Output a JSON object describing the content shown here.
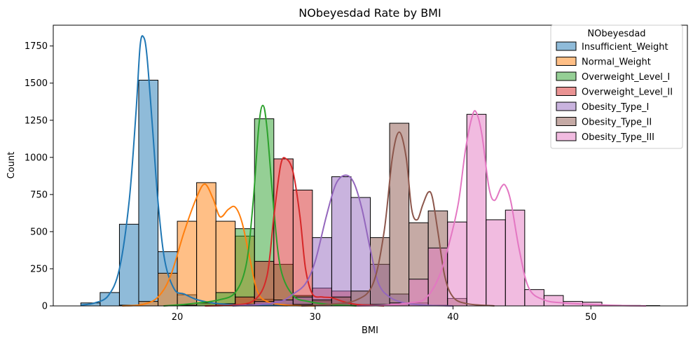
{
  "chart_data": {
    "type": "histogram",
    "title": "NObeyesdad Rate by BMI",
    "xlabel": "BMI",
    "ylabel": "Count",
    "xlim": [
      11,
      57
    ],
    "ylim": [
      0,
      1890
    ],
    "x_ticks": [
      20,
      30,
      40,
      50
    ],
    "y_ticks": [
      0,
      250,
      500,
      750,
      1000,
      1250,
      1500,
      1750
    ],
    "legend": {
      "title": "NObeyesdad",
      "position": "upper right"
    },
    "bin_edges": [
      13.0,
      14.4,
      15.8,
      17.2,
      18.6,
      20.0,
      21.4,
      22.8,
      24.2,
      25.6,
      27.0,
      28.4,
      29.8,
      31.2,
      32.6,
      34.0,
      35.4,
      36.8,
      38.2,
      39.6,
      41.0,
      42.4,
      43.8,
      45.2,
      46.6,
      48.0,
      49.4,
      50.8,
      52.2,
      53.6,
      55.0
    ],
    "series": [
      {
        "name": "Insufficient_Weight",
        "color": "#1f77b4",
        "counts": [
          20,
          90,
          550,
          1520,
          365,
          75,
          20,
          10,
          5,
          3,
          2,
          0,
          0,
          0,
          0,
          0,
          0,
          0,
          0,
          0,
          0,
          0,
          0,
          0,
          0,
          0,
          0,
          0,
          0,
          0
        ],
        "kde": [
          [
            13.0,
            5
          ],
          [
            14.0,
            20
          ],
          [
            15.0,
            70
          ],
          [
            15.8,
            250
          ],
          [
            16.5,
            700
          ],
          [
            17.0,
            1300
          ],
          [
            17.3,
            1750
          ],
          [
            17.55,
            1810
          ],
          [
            17.8,
            1680
          ],
          [
            18.2,
            1200
          ],
          [
            18.6,
            700
          ],
          [
            19.1,
            300
          ],
          [
            19.8,
            110
          ],
          [
            20.5,
            80
          ],
          [
            21.5,
            40
          ],
          [
            23,
            15
          ],
          [
            25,
            5
          ],
          [
            28,
            2
          ]
        ]
      },
      {
        "name": "Normal_Weight",
        "color": "#ff7f0e",
        "counts": [
          0,
          0,
          5,
          30,
          220,
          570,
          830,
          570,
          470,
          45,
          10,
          3,
          0,
          0,
          0,
          0,
          0,
          0,
          0,
          0,
          0,
          0,
          0,
          0,
          0,
          0,
          0,
          0,
          0,
          0
        ],
        "kde": [
          [
            16,
            0
          ],
          [
            17.5,
            10
          ],
          [
            18.6,
            60
          ],
          [
            19.5,
            200
          ],
          [
            20.5,
            500
          ],
          [
            21.4,
            730
          ],
          [
            22.0,
            820
          ],
          [
            22.6,
            720
          ],
          [
            23.1,
            600
          ],
          [
            23.7,
            650
          ],
          [
            24.2,
            665
          ],
          [
            24.7,
            560
          ],
          [
            25.3,
            300
          ],
          [
            25.8,
            100
          ],
          [
            26.5,
            30
          ],
          [
            28,
            5
          ],
          [
            30,
            0
          ]
        ]
      },
      {
        "name": "Overweight_Level_I",
        "color": "#2ca02c",
        "counts": [
          0,
          0,
          0,
          0,
          0,
          5,
          20,
          90,
          520,
          1260,
          280,
          70,
          30,
          15,
          5,
          0,
          0,
          0,
          0,
          0,
          0,
          0,
          0,
          0,
          0,
          0,
          0,
          0,
          0,
          0
        ],
        "kde": [
          [
            19,
            0
          ],
          [
            20.5,
            10
          ],
          [
            21.5,
            20
          ],
          [
            23,
            40
          ],
          [
            24.2,
            90
          ],
          [
            25.0,
            280
          ],
          [
            25.5,
            700
          ],
          [
            25.9,
            1200
          ],
          [
            26.2,
            1350
          ],
          [
            26.5,
            1200
          ],
          [
            27.0,
            650
          ],
          [
            27.5,
            250
          ],
          [
            28.4,
            70
          ],
          [
            29.5,
            30
          ],
          [
            31,
            10
          ],
          [
            33,
            0
          ]
        ]
      },
      {
        "name": "Overweight_Level_II",
        "color": "#d62728",
        "counts": [
          0,
          0,
          0,
          0,
          0,
          0,
          0,
          15,
          60,
          300,
          990,
          780,
          120,
          100,
          10,
          3,
          0,
          0,
          0,
          0,
          0,
          0,
          0,
          0,
          0,
          0,
          0,
          0,
          0,
          0
        ],
        "kde": [
          [
            22,
            0
          ],
          [
            24,
            5
          ],
          [
            25.6,
            40
          ],
          [
            26.5,
            200
          ],
          [
            27.0,
            600
          ],
          [
            27.5,
            950
          ],
          [
            27.9,
            990
          ],
          [
            28.4,
            900
          ],
          [
            28.9,
            600
          ],
          [
            29.3,
            250
          ],
          [
            29.8,
            80
          ],
          [
            30.5,
            60
          ],
          [
            31.2,
            55
          ],
          [
            32,
            30
          ],
          [
            33,
            10
          ],
          [
            35,
            0
          ]
        ]
      },
      {
        "name": "Obesity_Type_I",
        "color": "#9467bd",
        "counts": [
          0,
          0,
          0,
          0,
          0,
          0,
          0,
          0,
          10,
          30,
          40,
          60,
          460,
          870,
          730,
          280,
          80,
          20,
          5,
          0,
          0,
          0,
          0,
          0,
          0,
          0,
          0,
          0,
          0,
          0
        ],
        "kde": [
          [
            24,
            0
          ],
          [
            26,
            10
          ],
          [
            27.5,
            30
          ],
          [
            28.4,
            80
          ],
          [
            29.3,
            150
          ],
          [
            30.0,
            300
          ],
          [
            30.8,
            600
          ],
          [
            31.5,
            820
          ],
          [
            32.2,
            880
          ],
          [
            32.8,
            830
          ],
          [
            33.4,
            650
          ],
          [
            34.0,
            380
          ],
          [
            34.6,
            150
          ],
          [
            35.4,
            60
          ],
          [
            36.5,
            20
          ],
          [
            38,
            5
          ],
          [
            40,
            0
          ]
        ]
      },
      {
        "name": "Obesity_Type_II",
        "color": "#8c564b",
        "counts": [
          0,
          0,
          0,
          0,
          0,
          0,
          0,
          0,
          0,
          0,
          0,
          10,
          40,
          60,
          100,
          460,
          1230,
          560,
          640,
          50,
          0,
          0,
          0,
          0,
          0,
          0,
          0,
          0,
          0,
          0
        ],
        "kde": [
          [
            29,
            0
          ],
          [
            31,
            10
          ],
          [
            33,
            40
          ],
          [
            34.2,
            150
          ],
          [
            35.0,
            500
          ],
          [
            35.6,
            1000
          ],
          [
            36.1,
            1170
          ],
          [
            36.6,
            1000
          ],
          [
            37.0,
            650
          ],
          [
            37.4,
            580
          ],
          [
            37.8,
            680
          ],
          [
            38.2,
            765
          ],
          [
            38.5,
            730
          ],
          [
            38.9,
            500
          ],
          [
            39.4,
            200
          ],
          [
            40.0,
            60
          ],
          [
            41,
            15
          ],
          [
            43,
            0
          ]
        ]
      },
      {
        "name": "Obesity_Type_III",
        "color": "#e377c2",
        "counts": [
          0,
          0,
          0,
          0,
          0,
          0,
          0,
          0,
          0,
          0,
          0,
          0,
          0,
          0,
          0,
          10,
          20,
          180,
          390,
          565,
          1290,
          580,
          645,
          110,
          70,
          30,
          25,
          5,
          3,
          2
        ],
        "kde": [
          [
            33,
            0
          ],
          [
            35,
            5
          ],
          [
            36.8,
            20
          ],
          [
            38,
            50
          ],
          [
            39.0,
            200
          ],
          [
            39.8,
            450
          ],
          [
            40.4,
            700
          ],
          [
            40.9,
            1050
          ],
          [
            41.4,
            1280
          ],
          [
            41.7,
            1300
          ],
          [
            42.1,
            1150
          ],
          [
            42.6,
            800
          ],
          [
            43.0,
            710
          ],
          [
            43.5,
            800
          ],
          [
            43.8,
            810
          ],
          [
            44.2,
            700
          ],
          [
            44.8,
            380
          ],
          [
            45.5,
            120
          ],
          [
            46.6,
            40
          ],
          [
            48,
            20
          ],
          [
            50,
            10
          ],
          [
            52,
            3
          ],
          [
            54,
            0
          ]
        ]
      }
    ]
  }
}
